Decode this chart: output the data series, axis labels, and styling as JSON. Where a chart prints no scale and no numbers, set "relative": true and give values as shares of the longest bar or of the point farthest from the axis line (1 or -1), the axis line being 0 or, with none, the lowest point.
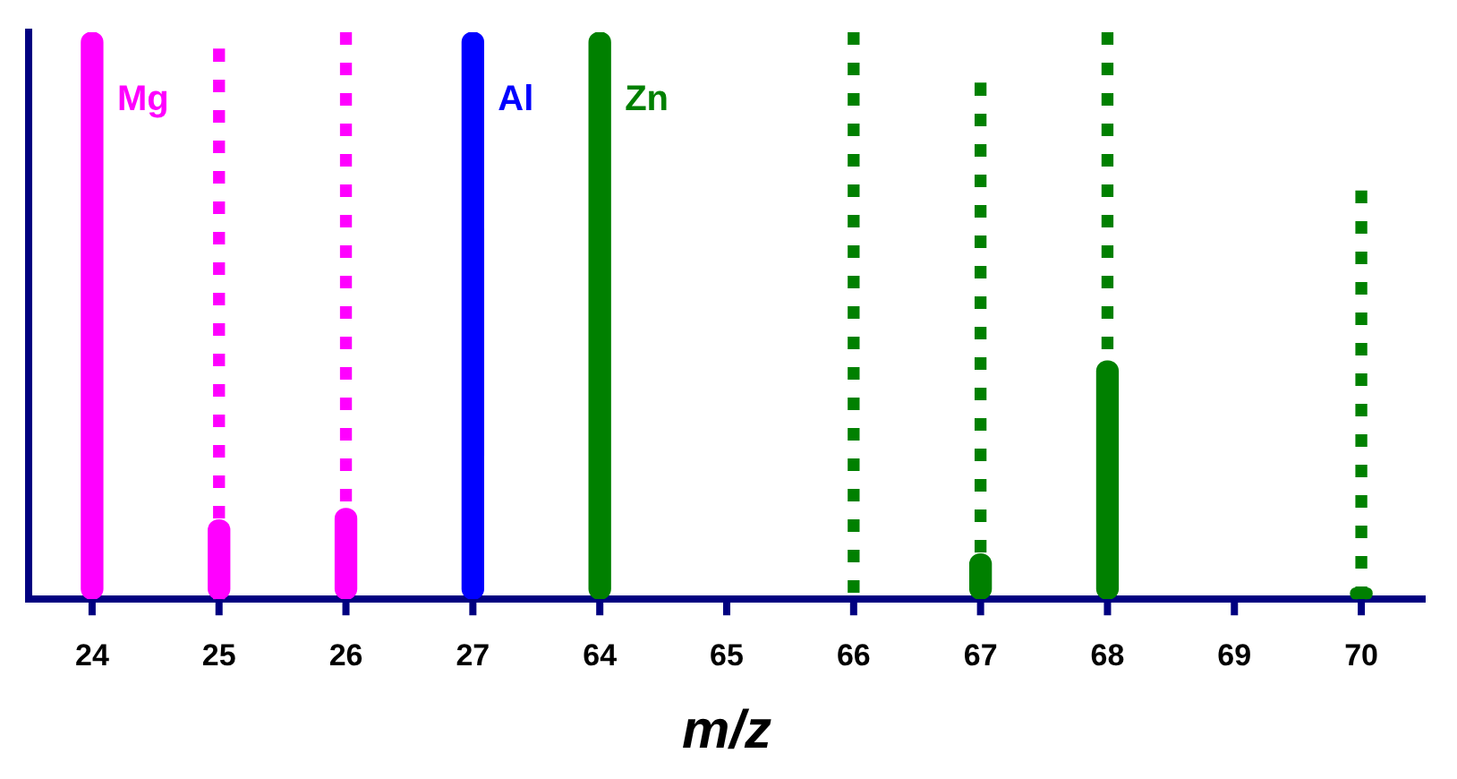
{
  "chart_data": {
    "type": "bar",
    "xlabel": "m/z",
    "relative": true,
    "grid": false,
    "legend": false,
    "categories": [
      "24",
      "25",
      "26",
      "27",
      "64",
      "65",
      "66",
      "67",
      "68",
      "69",
      "70"
    ],
    "series": [
      {
        "colors": [
          "#ff00ff",
          "#ff00ff",
          "#ff00ff",
          "#0000ff",
          "#008000",
          null,
          null,
          "#008000",
          "#008000",
          null,
          "#008000"
        ],
        "values": [
          1.0,
          0.14,
          0.16,
          1.0,
          1.0,
          null,
          null,
          0.08,
          0.42,
          null,
          0.02
        ]
      },
      {
        "line_style": "dotted",
        "colors": [
          null,
          "#ff00ff",
          "#ff00ff",
          null,
          null,
          null,
          "#008000",
          "#008000",
          "#008000",
          null,
          "#008000"
        ],
        "values": [
          null,
          0.97,
          1.0,
          null,
          null,
          null,
          1.0,
          0.91,
          1.0,
          null,
          0.72
        ]
      }
    ],
    "annotations": [
      "Mg",
      "Al",
      "Zn"
    ]
  }
}
